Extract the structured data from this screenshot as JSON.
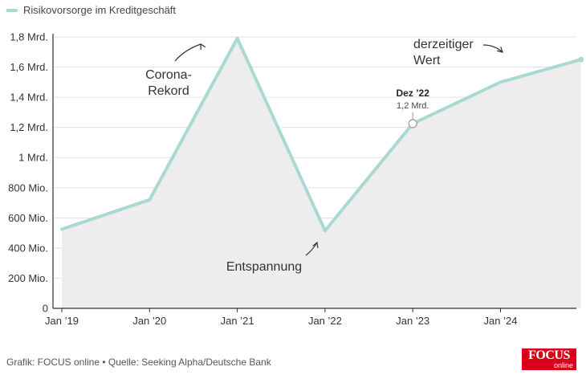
{
  "legend": {
    "label": "Risikovorsorge im Kreditgeschäft",
    "color": "#a9d9d2"
  },
  "footer": {
    "credit": "Grafik: FOCUS online • Quelle: Seeking Alpha/Deutsche Bank"
  },
  "logo": {
    "brand": "FOCUS",
    "sub": "online",
    "color": "#d9001a"
  },
  "colors": {
    "line": "#a9d9d2",
    "area": "#ededed",
    "grid": "#e2e2e2",
    "axis": "#333333",
    "text": "#333333"
  },
  "chart_data": {
    "type": "area",
    "series": [
      {
        "name": "Risikovorsorge im Kreditgeschäft",
        "x": [
          "2019-01",
          "2020-01",
          "2021-01",
          "2022-01",
          "2023-01",
          "2024-01",
          "2024-12"
        ],
        "y": [
          525000000,
          720000000,
          1790000000,
          515000000,
          1225000000,
          1500000000,
          1650000000
        ]
      }
    ],
    "ylim": [
      0,
      1800000000
    ],
    "yticks": [
      {
        "value": 0,
        "label": "0"
      },
      {
        "value": 200000000,
        "label": "200 Mio."
      },
      {
        "value": 400000000,
        "label": "400 Mio."
      },
      {
        "value": 600000000,
        "label": "600 Mio."
      },
      {
        "value": 800000000,
        "label": "800 Mio."
      },
      {
        "value": 1000000000,
        "label": "1 Mrd."
      },
      {
        "value": 1200000000,
        "label": "1,2 Mrd."
      },
      {
        "value": 1400000000,
        "label": "1,4 Mrd."
      },
      {
        "value": 1600000000,
        "label": "1,6 Mrd."
      },
      {
        "value": 1800000000,
        "label": "1,8 Mrd."
      }
    ],
    "xticks": [
      {
        "value": "2019-01",
        "label": "Jan ’19"
      },
      {
        "value": "2020-01",
        "label": "Jan ’20"
      },
      {
        "value": "2021-01",
        "label": "Jan ’21"
      },
      {
        "value": "2022-01",
        "label": "Jan ’22"
      },
      {
        "value": "2023-01",
        "label": "Jan ’23"
      },
      {
        "value": "2024-01",
        "label": "Jan ’24"
      }
    ],
    "grid": true,
    "highlight": {
      "x": "2023-01",
      "y": 1225000000,
      "title": "Dez ’22",
      "value_label": "1,2 Mrd."
    },
    "annotations": [
      {
        "id": "corona",
        "lines": [
          "Corona-",
          "Rekord"
        ],
        "x": "2021-01",
        "y": 1790000000
      },
      {
        "id": "entspannung",
        "lines": [
          "Entspannung"
        ],
        "x": "2022-01",
        "y": 515000000
      },
      {
        "id": "wert",
        "lines": [
          "derzeitiger",
          "Wert"
        ],
        "x": "2024-12",
        "y": 1650000000
      }
    ]
  }
}
